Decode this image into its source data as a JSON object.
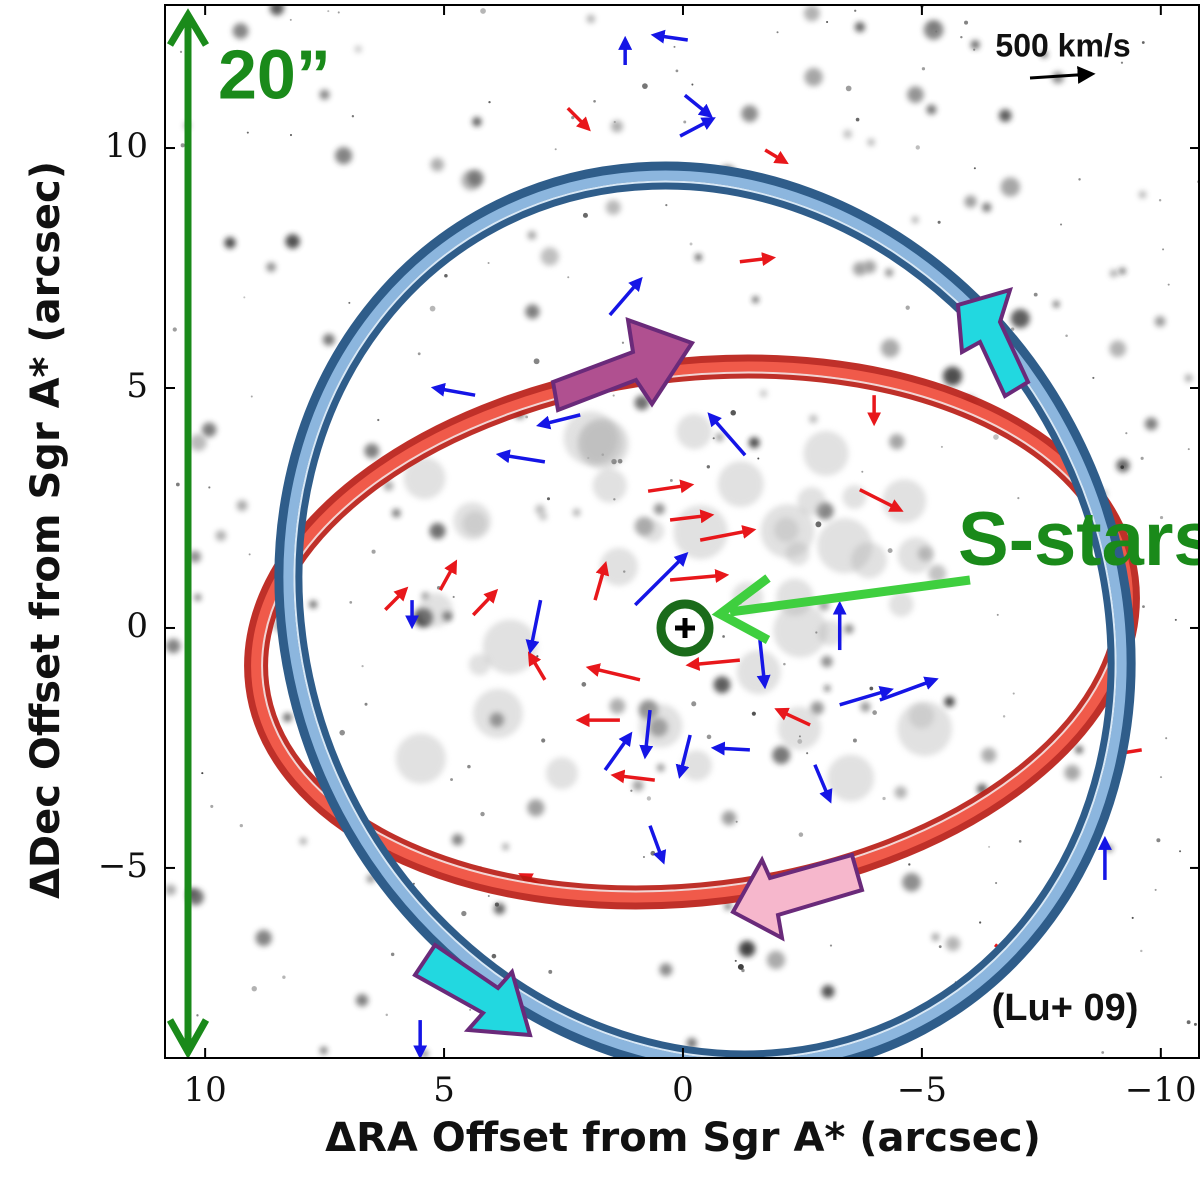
{
  "chart_data": {
    "type": "vector-field",
    "xlabel": "ΔRA Offset from Sgr A* (arcsec)",
    "ylabel": "ΔDec Offset from Sgr A* (arcsec)",
    "xlim": [
      10.84,
      -10.82
    ],
    "ylim": [
      -8.96,
      12.98
    ],
    "xticks": [
      10,
      5,
      0,
      {
        "value": -5,
        "label": "−5"
      },
      {
        "value": -10,
        "label": "−10"
      }
    ],
    "yticks": [
      {
        "value": -5,
        "label": "−5"
      },
      0,
      5,
      10
    ],
    "annotations": {
      "size_label": "20”",
      "scale_label": "500 km/s",
      "group_label": "S-stars",
      "citation": "(Lu+ 09)"
    },
    "vectors": [
      {
        "color": "#e8171b",
        "x": [
          0.73,
          0.27,
          -0.36,
          0.27,
          1.84,
          -1.19,
          0.9,
          1.32,
          0.59,
          -3.7,
          -4.0,
          -1.19,
          2.41,
          -1.72,
          5.08,
          6.23,
          4.39,
          2.89,
          -2.66,
          -9.6,
          2.78,
          -6.53
        ],
        "y": [
          2.85,
          2.25,
          1.83,
          1.0,
          0.58,
          -0.67,
          -1.08,
          -1.92,
          -3.17,
          2.88,
          4.85,
          7.63,
          10.83,
          9.96,
          0.79,
          0.38,
          0.27,
          -1.08,
          -2.02,
          -2.54,
          -5.46,
          -6.6
        ],
        "dx": [
          -0.88,
          -0.84,
          -1.09,
          -1.15,
          -0.21,
          1.05,
          1.05,
          0.84,
          0.84,
          -0.84,
          0,
          -0.67,
          -0.42,
          -0.42,
          -0.31,
          -0.42,
          -0.46,
          0.31,
          0.67,
          0.63,
          0.59,
          -0.42
        ],
        "dy": [
          0.13,
          0.1,
          0.21,
          0.1,
          0.73,
          -0.1,
          0.25,
          0,
          0.1,
          -0.42,
          -0.56,
          0.08,
          -0.42,
          -0.25,
          0.56,
          0.42,
          0.48,
          0.52,
          0.31,
          -0.1,
          0.31,
          -0.31
        ]
      },
      {
        "color": "#1515e6",
        "x": [
          1.21,
          -0.1,
          -0.04,
          0.06,
          1.53,
          4.35,
          2.15,
          2.89,
          -1.3,
          1.0,
          2.98,
          -3.28,
          -1.61,
          -3.28,
          -4.12,
          0.69,
          -0.15,
          -1.4,
          -2.76,
          0.69,
          -8.83,
          5.67,
          5.5,
          1.63
        ],
        "y": [
          11.73,
          12.25,
          11.1,
          10.25,
          6.52,
          4.85,
          4.44,
          3.46,
          3.6,
          0.48,
          0.58,
          -0.46,
          -0.25,
          -1.6,
          -1.5,
          -1.71,
          -2.23,
          -2.54,
          -2.85,
          -4.12,
          -5.25,
          0.58,
          -8.17,
          -2.96
        ],
        "dx": [
          0,
          0.69,
          -0.52,
          -0.67,
          -0.63,
          0.84,
          0.84,
          0.94,
          0.73,
          -1.05,
          0.21,
          0,
          -0.1,
          -1.05,
          -1.15,
          0.1,
          0.21,
          0.73,
          -0.31,
          -0.27,
          0,
          0,
          0,
          -0.52
        ],
        "dy": [
          0.52,
          0.1,
          -0.42,
          0.35,
          0.73,
          0.15,
          -0.21,
          0.15,
          0.83,
          1.04,
          -1.04,
          0.94,
          -0.94,
          0.31,
          0.42,
          -0.94,
          -0.83,
          0.04,
          -0.73,
          -0.73,
          0.83,
          -0.52,
          -0.73,
          0.73
        ]
      }
    ]
  }
}
